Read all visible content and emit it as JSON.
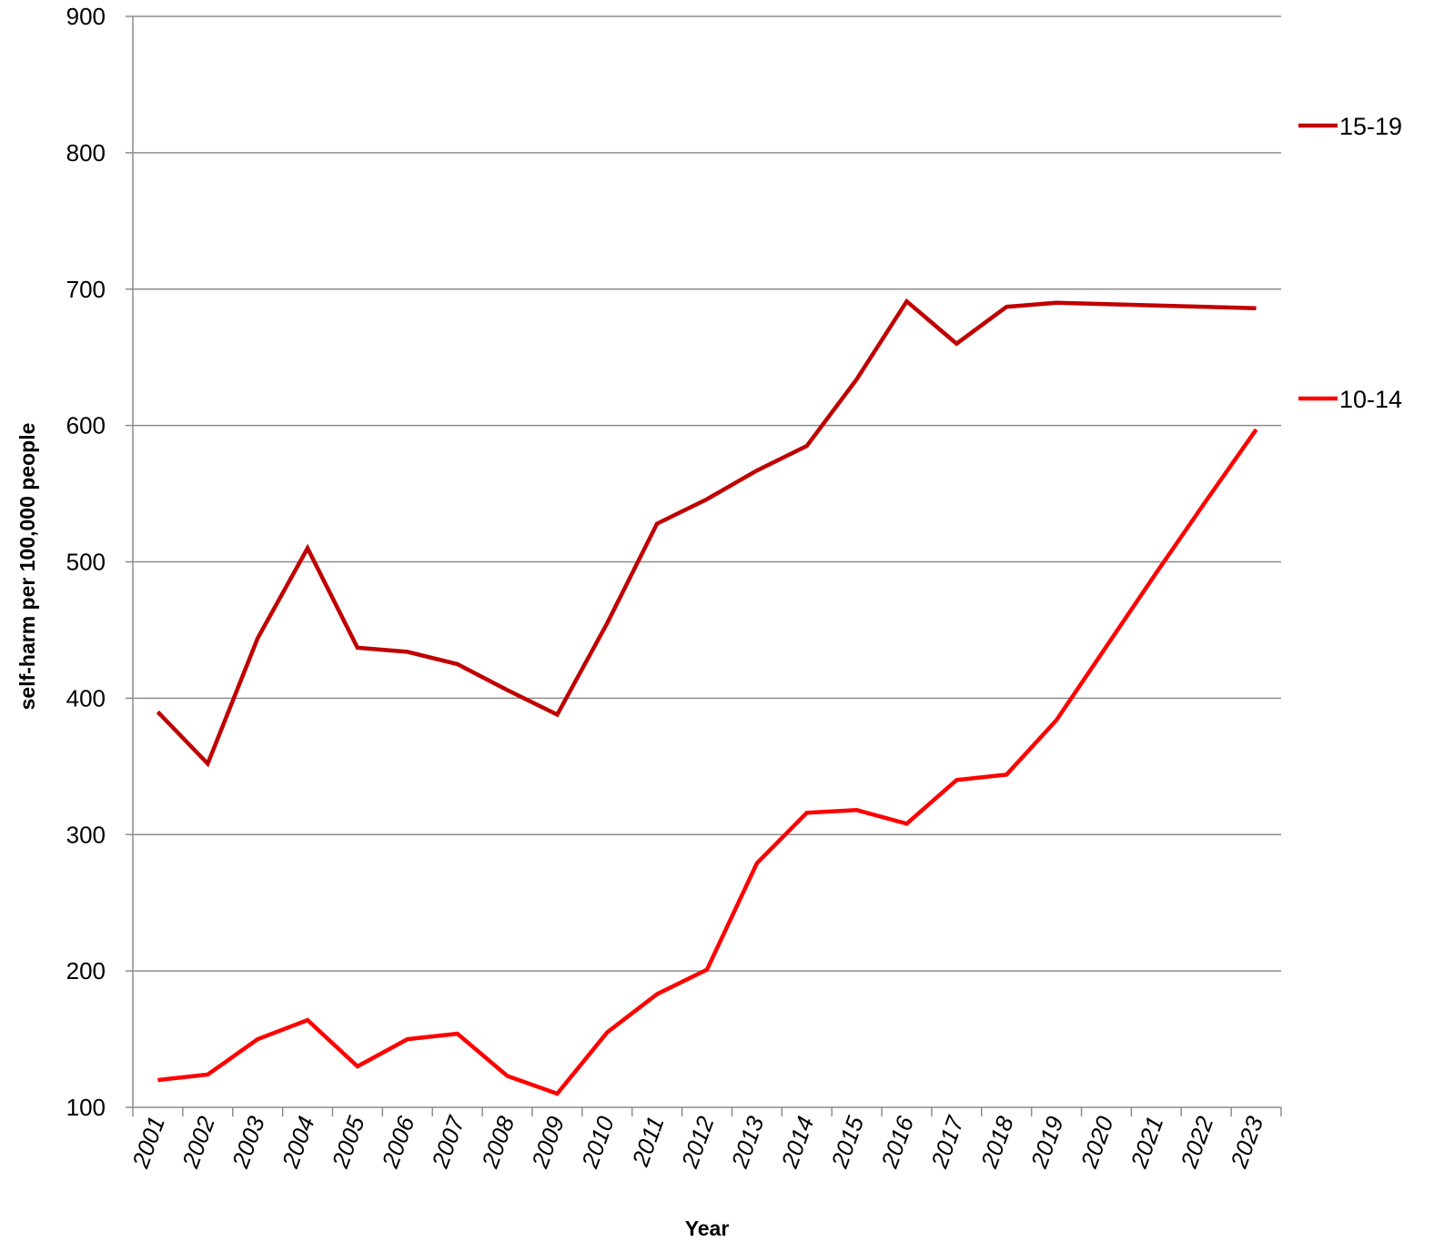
{
  "chart_data": {
    "type": "line",
    "title": "",
    "xlabel": "Year",
    "ylabel": "self-harm per 100,000 people",
    "ylim": [
      100,
      900
    ],
    "yticks": [
      100,
      200,
      300,
      400,
      500,
      600,
      700,
      800,
      900
    ],
    "grid": "horizontal",
    "legend_placement": "right",
    "categories": [
      "2001",
      "2002",
      "2003",
      "2004",
      "2005",
      "2006",
      "2007",
      "2008",
      "2009",
      "2010",
      "2011",
      "2012",
      "2013",
      "2014",
      "2015",
      "2016",
      "2017",
      "2018",
      "2019",
      "2020",
      "2021",
      "2022",
      "2023"
    ],
    "series": [
      {
        "name": "15-19",
        "color": "#C00000",
        "values": [
          390,
          352,
          444,
          510,
          437,
          434,
          425,
          406,
          388,
          455,
          528,
          546,
          567,
          585,
          634,
          691,
          660,
          687,
          690,
          689,
          688,
          687,
          686
        ]
      },
      {
        "name": "10-14",
        "color": "#FF0000",
        "values": [
          120,
          124,
          150,
          164,
          130,
          150,
          154,
          123,
          110,
          155,
          183,
          201,
          279,
          316,
          318,
          308,
          340,
          344,
          384,
          438,
          492,
          545,
          597
        ]
      }
    ]
  }
}
